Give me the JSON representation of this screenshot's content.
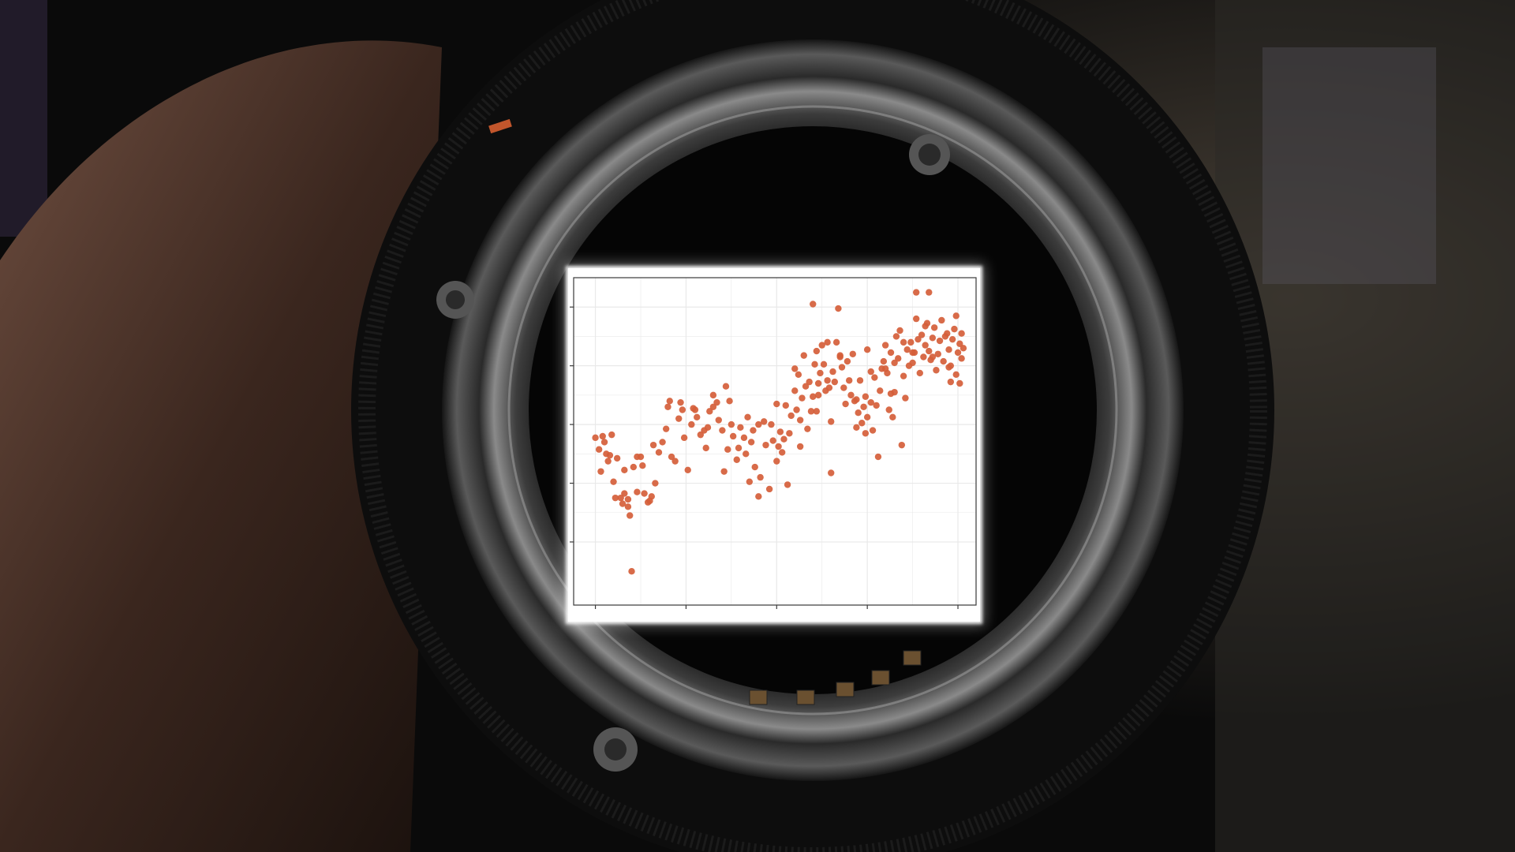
{
  "colors": {
    "point": "#d55e3a",
    "plot_background": "#ffffff",
    "grid": "#e9e9e9",
    "axis_frame": "#3a3a3a"
  },
  "chart_data": {
    "type": "scatter",
    "title": "",
    "xlabel": "",
    "ylabel": "",
    "xlim": [
      -1.2,
      21.0
    ],
    "ylim": [
      -4.3,
      18.0
    ],
    "x_ticks": [
      0,
      5,
      10,
      15,
      20
    ],
    "y_ticks": [
      0,
      4,
      8,
      12,
      16
    ],
    "tick_labels_visible": false,
    "grid": true,
    "legend": "none",
    "series": [
      {
        "points": [
          [
            0.0,
            7.1
          ],
          [
            0.2,
            6.3
          ],
          [
            0.4,
            7.2
          ],
          [
            0.5,
            6.8
          ],
          [
            0.7,
            5.5
          ],
          [
            0.3,
            4.8
          ],
          [
            0.8,
            5.9
          ],
          [
            0.6,
            6.0
          ],
          [
            1.0,
            4.1
          ],
          [
            1.2,
            5.7
          ],
          [
            1.4,
            3.0
          ],
          [
            1.5,
            2.6
          ],
          [
            1.6,
            3.3
          ],
          [
            1.8,
            2.4
          ],
          [
            1.9,
            1.8
          ],
          [
            2.0,
            -2.0
          ],
          [
            2.1,
            5.1
          ],
          [
            2.3,
            3.4
          ],
          [
            2.5,
            5.8
          ],
          [
            2.7,
            3.3
          ],
          [
            2.9,
            2.7
          ],
          [
            3.1,
            3.1
          ],
          [
            3.3,
            4.0
          ],
          [
            3.5,
            6.1
          ],
          [
            3.7,
            6.8
          ],
          [
            3.9,
            7.7
          ],
          [
            4.0,
            9.2
          ],
          [
            4.2,
            5.8
          ],
          [
            4.4,
            5.5
          ],
          [
            4.6,
            8.4
          ],
          [
            4.7,
            9.5
          ],
          [
            4.9,
            7.1
          ],
          [
            5.1,
            4.9
          ],
          [
            5.3,
            8.0
          ],
          [
            5.5,
            9.0
          ],
          [
            5.6,
            8.5
          ],
          [
            5.8,
            7.3
          ],
          [
            6.0,
            7.6
          ],
          [
            6.1,
            6.4
          ],
          [
            6.3,
            8.9
          ],
          [
            6.5,
            10.0
          ],
          [
            6.7,
            9.5
          ],
          [
            6.8,
            8.3
          ],
          [
            7.0,
            7.6
          ],
          [
            7.1,
            4.8
          ],
          [
            7.2,
            10.6
          ],
          [
            7.3,
            6.3
          ],
          [
            7.5,
            8.0
          ],
          [
            7.6,
            7.2
          ],
          [
            7.8,
            5.6
          ],
          [
            7.9,
            6.4
          ],
          [
            8.0,
            7.8
          ],
          [
            8.2,
            7.1
          ],
          [
            8.3,
            6.0
          ],
          [
            8.5,
            4.1
          ],
          [
            8.6,
            6.8
          ],
          [
            8.7,
            7.6
          ],
          [
            8.8,
            5.1
          ],
          [
            9.0,
            3.1
          ],
          [
            9.1,
            4.4
          ],
          [
            9.3,
            8.2
          ],
          [
            9.4,
            6.6
          ],
          [
            9.6,
            3.6
          ],
          [
            9.7,
            8.0
          ],
          [
            9.8,
            6.9
          ],
          [
            10.0,
            9.4
          ],
          [
            10.1,
            6.5
          ],
          [
            10.2,
            7.5
          ],
          [
            10.3,
            6.1
          ],
          [
            10.4,
            7.0
          ],
          [
            10.6,
            3.9
          ],
          [
            10.7,
            7.4
          ],
          [
            10.8,
            8.6
          ],
          [
            11.0,
            10.3
          ],
          [
            11.1,
            9.0
          ],
          [
            11.2,
            11.4
          ],
          [
            11.3,
            8.3
          ],
          [
            11.4,
            9.8
          ],
          [
            11.5,
            12.7
          ],
          [
            11.6,
            10.6
          ],
          [
            11.7,
            7.7
          ],
          [
            11.8,
            10.9
          ],
          [
            11.9,
            8.9
          ],
          [
            12.0,
            9.9
          ],
          [
            12.0,
            16.2
          ],
          [
            12.1,
            12.1
          ],
          [
            12.2,
            13.0
          ],
          [
            12.3,
            10.8
          ],
          [
            12.4,
            11.5
          ],
          [
            12.5,
            13.4
          ],
          [
            12.6,
            12.1
          ],
          [
            12.7,
            10.3
          ],
          [
            12.8,
            11.0
          ],
          [
            12.9,
            10.5
          ],
          [
            13.0,
            8.2
          ],
          [
            13.0,
            4.7
          ],
          [
            13.1,
            11.6
          ],
          [
            13.2,
            10.9
          ],
          [
            13.3,
            13.6
          ],
          [
            13.4,
            15.9
          ],
          [
            13.5,
            12.6
          ],
          [
            13.6,
            11.9
          ],
          [
            13.8,
            9.4
          ],
          [
            13.9,
            12.3
          ],
          [
            14.0,
            11.0
          ],
          [
            14.1,
            10.0
          ],
          [
            14.2,
            12.8
          ],
          [
            14.3,
            9.6
          ],
          [
            14.4,
            7.8
          ],
          [
            14.5,
            8.8
          ],
          [
            14.6,
            11.0
          ],
          [
            14.7,
            8.1
          ],
          [
            14.8,
            9.2
          ],
          [
            14.9,
            7.4
          ],
          [
            15.0,
            8.5
          ],
          [
            15.2,
            11.6
          ],
          [
            15.3,
            7.6
          ],
          [
            15.4,
            11.2
          ],
          [
            15.5,
            9.3
          ],
          [
            15.6,
            5.8
          ],
          [
            15.7,
            10.3
          ],
          [
            15.8,
            11.8
          ],
          [
            15.9,
            12.3
          ],
          [
            16.0,
            13.4
          ],
          [
            16.1,
            11.5
          ],
          [
            16.2,
            9.0
          ],
          [
            16.3,
            12.9
          ],
          [
            16.4,
            8.5
          ],
          [
            16.5,
            10.2
          ],
          [
            16.6,
            14.0
          ],
          [
            16.7,
            12.5
          ],
          [
            16.8,
            14.4
          ],
          [
            16.9,
            6.6
          ],
          [
            17.0,
            11.3
          ],
          [
            17.1,
            9.8
          ],
          [
            17.2,
            13.1
          ],
          [
            17.3,
            12.0
          ],
          [
            17.4,
            13.6
          ],
          [
            17.5,
            12.2
          ],
          [
            17.6,
            12.9
          ],
          [
            17.7,
            15.2
          ],
          [
            17.8,
            13.8
          ],
          [
            17.9,
            11.5
          ],
          [
            18.0,
            14.1
          ],
          [
            18.1,
            12.6
          ],
          [
            18.2,
            13.4
          ],
          [
            18.3,
            14.9
          ],
          [
            18.4,
            13.0
          ],
          [
            18.5,
            12.4
          ],
          [
            18.6,
            13.9
          ],
          [
            18.7,
            14.6
          ],
          [
            18.8,
            11.7
          ],
          [
            18.9,
            12.8
          ],
          [
            19.0,
            13.7
          ],
          [
            19.1,
            15.1
          ],
          [
            19.2,
            12.3
          ],
          [
            19.3,
            14.0
          ],
          [
            19.4,
            14.2
          ],
          [
            19.5,
            13.1
          ],
          [
            19.6,
            12.0
          ],
          [
            19.7,
            13.8
          ],
          [
            19.8,
            14.5
          ],
          [
            19.9,
            11.4
          ],
          [
            20.0,
            12.9
          ],
          [
            20.1,
            13.5
          ],
          [
            20.2,
            12.5
          ],
          [
            20.3,
            13.2
          ],
          [
            19.9,
            15.4
          ],
          [
            19.6,
            10.9
          ],
          [
            20.1,
            10.8
          ],
          [
            17.7,
            17.0
          ],
          [
            18.4,
            17.0
          ],
          [
            15.0,
            13.1
          ],
          [
            17.5,
            12.9
          ],
          [
            18.2,
            14.7
          ],
          [
            12.8,
            13.6
          ],
          [
            13.5,
            12.7
          ],
          [
            14.4,
            9.7
          ],
          [
            16.3,
            10.1
          ],
          [
            12.3,
            10.0
          ],
          [
            11.0,
            11.8
          ],
          [
            10.5,
            9.3
          ],
          [
            9.0,
            8.0
          ],
          [
            8.4,
            8.5
          ],
          [
            6.5,
            9.2
          ],
          [
            5.4,
            9.1
          ],
          [
            3.2,
            6.6
          ],
          [
            2.6,
            5.2
          ],
          [
            1.6,
            4.9
          ],
          [
            0.9,
            7.3
          ],
          [
            13.7,
            10.5
          ],
          [
            14.9,
            9.9
          ],
          [
            16.0,
            11.8
          ],
          [
            17.0,
            13.6
          ],
          [
            18.6,
            12.6
          ],
          [
            19.5,
            11.9
          ],
          [
            20.2,
            14.2
          ],
          [
            11.3,
            6.5
          ],
          [
            10.0,
            5.5
          ],
          [
            7.4,
            9.6
          ],
          [
            6.2,
            7.8
          ],
          [
            4.8,
            9.0
          ],
          [
            4.1,
            9.6
          ],
          [
            3.0,
            2.8
          ],
          [
            1.8,
            2.9
          ],
          [
            2.3,
            5.8
          ],
          [
            1.1,
            3.0
          ],
          [
            15.2,
            9.5
          ],
          [
            16.5,
            12.2
          ],
          [
            12.2,
            8.9
          ]
        ]
      }
    ]
  }
}
